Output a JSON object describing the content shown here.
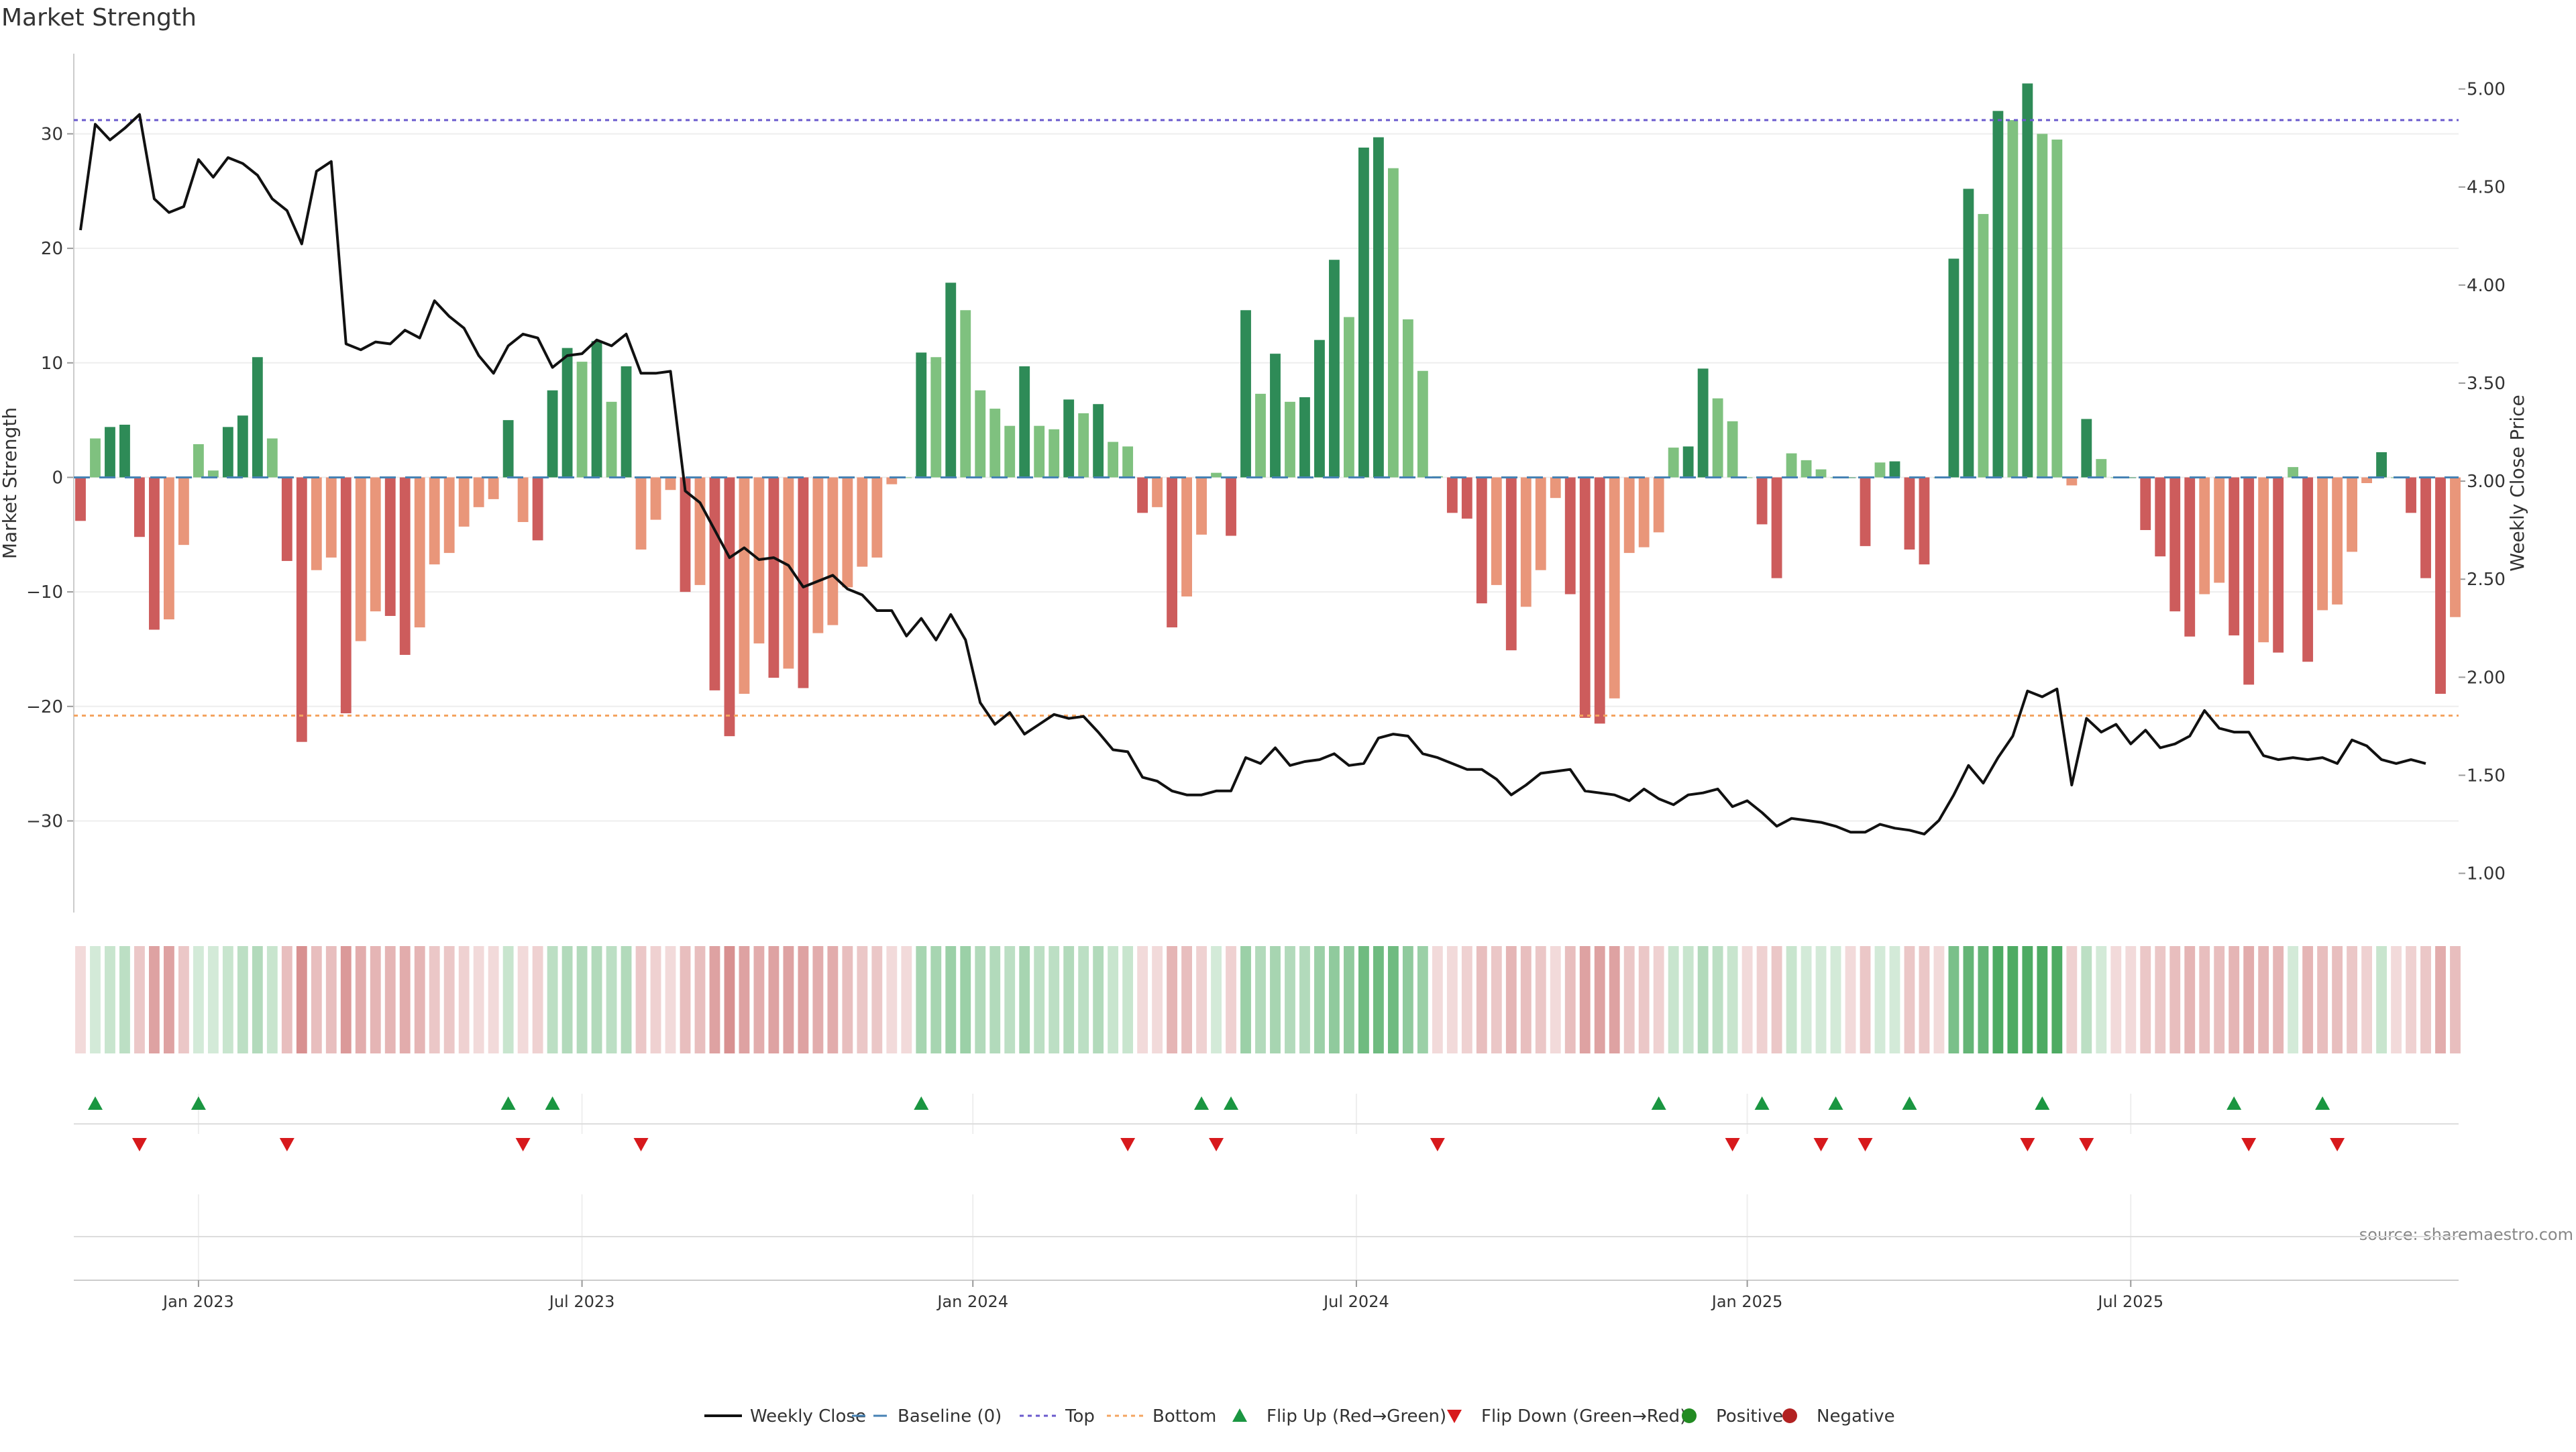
{
  "title": "Market Strength",
  "source": "source: sharemaestro.com",
  "chart_data": {
    "type": "bar",
    "title": "Market Strength",
    "ylabel": "Market Strength",
    "y2label": "Weekly Close Price",
    "ylim": [
      -38,
      37
    ],
    "y2lim": [
      0.8,
      5.18
    ],
    "yticks": [
      30,
      20,
      10,
      0,
      -10,
      -20,
      -30
    ],
    "y2ticks": [
      5.0,
      4.5,
      4.0,
      3.5,
      3.0,
      2.5,
      2.0,
      1.5,
      1.0
    ],
    "y2ticklabels": [
      "5.00",
      "4.50",
      "4.00",
      "3.50",
      "3.00",
      "2.50",
      "2.00",
      "1.50",
      "1.00"
    ],
    "top_line": 31.2,
    "bottom_line": -20.8,
    "x_labels": [
      {
        "label": "Jan 2023",
        "index": 8
      },
      {
        "label": "Jul 2023",
        "index": 34
      },
      {
        "label": "Jan 2024",
        "index": 60.5
      },
      {
        "label": "Jul 2024",
        "index": 86.5
      },
      {
        "label": "Jan 2025",
        "index": 113
      },
      {
        "label": "Jul 2025",
        "index": 139
      }
    ],
    "colors": {
      "pos_strong": "#2e8b57",
      "pos_weak": "#7fc17f",
      "neg_strong": "#cd5c5c",
      "neg_weak": "#e9967a",
      "price": "#111111",
      "top": "#6a5acd",
      "bottom": "#f4a460",
      "baseline": "#4682b4",
      "flip_up": "#1a9641",
      "flip_down": "#d7191c",
      "positive": "#228b22",
      "negative": "#b22222"
    },
    "series": [
      {
        "name": "Market Strength",
        "values": [
          -3.8,
          3.4,
          4.4,
          4.6,
          -5.2,
          -13.3,
          -12.4,
          -5.9,
          2.9,
          0.6,
          4.4,
          5.4,
          10.5,
          3.4,
          -7.3,
          -23.1,
          -8.1,
          -7.0,
          -20.6,
          -14.3,
          -11.7,
          -12.1,
          -15.5,
          -13.1,
          -7.6,
          -6.6,
          -4.3,
          -2.6,
          -1.9,
          5.0,
          -3.9,
          -5.5,
          7.6,
          11.3,
          10.1,
          11.9,
          6.6,
          9.7,
          -6.3,
          -3.7,
          -1.1,
          -10.0,
          -9.4,
          -18.6,
          -22.6,
          -18.9,
          -14.5,
          -17.5,
          -16.7,
          -18.4,
          -13.6,
          -12.9,
          -9.6,
          -7.8,
          -7.0,
          -0.6,
          0,
          10.9,
          10.5,
          17.0,
          14.6,
          7.6,
          6.0,
          4.5,
          9.7,
          4.5,
          4.2,
          6.8,
          5.6,
          6.4,
          3.1,
          2.7,
          -3.1,
          -2.6,
          -13.1,
          -10.4,
          -5.0,
          0.4,
          -5.1,
          14.6,
          7.3,
          10.8,
          6.6,
          7.0,
          12.0,
          19.0,
          14.0,
          28.8,
          29.7,
          27.0,
          13.8,
          9.3,
          0.1,
          -3.1,
          -3.6,
          -11.0,
          -9.4,
          -15.1,
          -11.3,
          -8.1,
          -1.8,
          -10.2,
          -21.0,
          -21.5,
          -19.3,
          -6.6,
          -6.1,
          -4.8,
          2.6,
          2.7,
          9.5,
          6.9,
          4.9,
          0,
          -4.1,
          -8.8,
          2.1,
          1.5,
          0.7,
          0,
          0,
          -6.0,
          1.3,
          1.4,
          -6.3,
          -7.6,
          0,
          19.1,
          25.2,
          23.0,
          32.0,
          31.2,
          34.4,
          30.0,
          29.5,
          -0.7,
          5.1,
          1.6,
          0,
          0,
          -4.6,
          -6.9,
          -11.7,
          -13.9,
          -10.2,
          -9.2,
          -13.8,
          -18.1,
          -14.4,
          -15.3,
          0.9,
          -16.1,
          -11.6,
          -11.1,
          -6.5,
          -0.5,
          2.2,
          0,
          -3.1,
          -8.8,
          -18.9,
          -12.2
        ]
      },
      {
        "name": "Weekly Close",
        "values": [
          4.28,
          4.82,
          4.74,
          4.8,
          4.87,
          4.44,
          4.37,
          4.4,
          4.64,
          4.55,
          4.65,
          4.62,
          4.56,
          4.44,
          4.38,
          4.21,
          4.58,
          4.63,
          3.7,
          3.67,
          3.71,
          3.7,
          3.77,
          3.73,
          3.92,
          3.84,
          3.78,
          3.64,
          3.55,
          3.69,
          3.75,
          3.73,
          3.58,
          3.64,
          3.65,
          3.72,
          3.69,
          3.75,
          3.55,
          3.55,
          3.56,
          2.95,
          2.89,
          2.75,
          2.61,
          2.66,
          2.6,
          2.61,
          2.57,
          2.46,
          2.49,
          2.52,
          2.45,
          2.42,
          2.34,
          2.34,
          2.21,
          2.3,
          2.19,
          2.32,
          2.19,
          1.87,
          1.76,
          1.82,
          1.71,
          1.76,
          1.81,
          1.79,
          1.8,
          1.72,
          1.63,
          1.62,
          1.49,
          1.47,
          1.42,
          1.4,
          1.4,
          1.42,
          1.42,
          1.59,
          1.56,
          1.64,
          1.55,
          1.57,
          1.58,
          1.61,
          1.55,
          1.56,
          1.69,
          1.71,
          1.7,
          1.61,
          1.59,
          1.56,
          1.53,
          1.53,
          1.48,
          1.4,
          1.45,
          1.51,
          1.52,
          1.53,
          1.42,
          1.41,
          1.4,
          1.37,
          1.43,
          1.38,
          1.35,
          1.4,
          1.41,
          1.43,
          1.34,
          1.37,
          1.31,
          1.24,
          1.28,
          1.27,
          1.26,
          1.24,
          1.21,
          1.21,
          1.25,
          1.23,
          1.22,
          1.2,
          1.27,
          1.4,
          1.55,
          1.46,
          1.59,
          1.7,
          1.93,
          1.9,
          1.94,
          1.45,
          1.79,
          1.72,
          1.76,
          1.66,
          1.73,
          1.64,
          1.66,
          1.7,
          1.83,
          1.74,
          1.72,
          1.72,
          1.6,
          1.58,
          1.59,
          1.58,
          1.59,
          1.56,
          1.68,
          1.65,
          1.58,
          1.56,
          1.58,
          1.56
        ]
      }
    ],
    "heat_values": [
      -0.2,
      0.2,
      0.25,
      0.3,
      -0.3,
      -0.5,
      -0.5,
      -0.3,
      0.2,
      0.2,
      0.25,
      0.3,
      0.35,
      0.25,
      -0.35,
      -0.6,
      -0.35,
      -0.35,
      -0.55,
      -0.45,
      -0.4,
      -0.4,
      -0.45,
      -0.4,
      -0.3,
      -0.3,
      -0.25,
      -0.2,
      -0.2,
      0.25,
      -0.2,
      -0.25,
      0.3,
      0.35,
      0.35,
      0.35,
      0.3,
      0.35,
      -0.3,
      -0.25,
      -0.2,
      -0.35,
      -0.35,
      -0.5,
      -0.6,
      -0.5,
      -0.45,
      -0.5,
      -0.5,
      -0.5,
      -0.45,
      -0.45,
      -0.35,
      -0.3,
      -0.3,
      -0.2,
      -0.2,
      0.4,
      0.4,
      0.45,
      0.45,
      0.35,
      0.35,
      0.3,
      0.4,
      0.3,
      0.3,
      0.35,
      0.3,
      0.35,
      0.25,
      0.25,
      -0.2,
      -0.2,
      -0.4,
      -0.35,
      -0.25,
      0.2,
      -0.25,
      0.45,
      0.35,
      0.4,
      0.35,
      0.35,
      0.45,
      0.5,
      0.5,
      0.65,
      0.65,
      0.65,
      0.5,
      0.45,
      -0.2,
      -0.2,
      -0.25,
      -0.35,
      -0.3,
      -0.4,
      -0.35,
      -0.3,
      -0.2,
      -0.35,
      -0.5,
      -0.5,
      -0.5,
      -0.3,
      -0.3,
      -0.25,
      0.25,
      0.25,
      0.35,
      0.3,
      0.25,
      -0.2,
      -0.25,
      -0.3,
      0.25,
      0.2,
      0.2,
      0.2,
      -0.2,
      -0.3,
      0.2,
      0.2,
      -0.3,
      -0.3,
      -0.2,
      0.6,
      0.7,
      0.7,
      0.8,
      0.8,
      0.8,
      0.8,
      0.8,
      -0.25,
      0.3,
      0.2,
      -0.2,
      -0.2,
      -0.3,
      -0.3,
      -0.35,
      -0.4,
      -0.35,
      -0.35,
      -0.4,
      -0.45,
      -0.4,
      -0.4,
      0.2,
      -0.4,
      -0.35,
      -0.35,
      -0.3,
      -0.25,
      0.25,
      -0.2,
      -0.25,
      -0.3,
      -0.45,
      -0.35
    ],
    "flip_up_indices": [
      1,
      8,
      29,
      32,
      57,
      76,
      78,
      107,
      114,
      119,
      124,
      133,
      146,
      152
    ],
    "flip_down_indices": [
      4,
      14,
      30,
      38,
      71,
      77,
      92,
      112,
      118,
      121,
      132,
      136,
      147,
      153
    ],
    "legend": [
      {
        "key": "price",
        "label": "Weekly Close"
      },
      {
        "key": "baseline",
        "label": "Baseline (0)"
      },
      {
        "key": "top",
        "label": "Top"
      },
      {
        "key": "bottom",
        "label": "Bottom"
      },
      {
        "key": "flip_up",
        "label": "Flip Up (Red→Green)"
      },
      {
        "key": "flip_down",
        "label": "Flip Down (Green→Red)"
      },
      {
        "key": "positive",
        "label": "Positive"
      },
      {
        "key": "negative",
        "label": "Negative"
      }
    ]
  }
}
